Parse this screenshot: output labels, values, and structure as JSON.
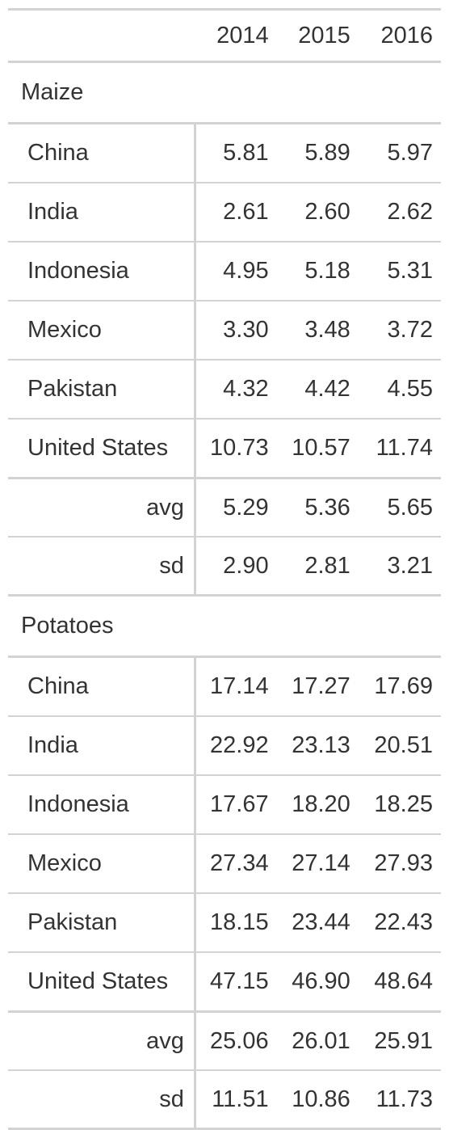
{
  "columns": [
    "2014",
    "2015",
    "2016"
  ],
  "groups": [
    {
      "name": "Maize",
      "rows": [
        {
          "label": "China",
          "values": [
            "5.81",
            "5.89",
            "5.97"
          ]
        },
        {
          "label": "India",
          "values": [
            "2.61",
            "2.60",
            "2.62"
          ]
        },
        {
          "label": "Indonesia",
          "values": [
            "4.95",
            "5.18",
            "5.31"
          ]
        },
        {
          "label": "Mexico",
          "values": [
            "3.30",
            "3.48",
            "3.72"
          ]
        },
        {
          "label": "Pakistan",
          "values": [
            "4.32",
            "4.42",
            "4.55"
          ]
        },
        {
          "label": "United States",
          "values": [
            "10.73",
            "10.57",
            "11.74"
          ]
        }
      ],
      "summary": [
        {
          "label": "avg",
          "values": [
            "5.29",
            "5.36",
            "5.65"
          ]
        },
        {
          "label": "sd",
          "values": [
            "2.90",
            "2.81",
            "3.21"
          ]
        }
      ]
    },
    {
      "name": "Potatoes",
      "rows": [
        {
          "label": "China",
          "values": [
            "17.14",
            "17.27",
            "17.69"
          ]
        },
        {
          "label": "India",
          "values": [
            "22.92",
            "23.13",
            "20.51"
          ]
        },
        {
          "label": "Indonesia",
          "values": [
            "17.67",
            "18.20",
            "18.25"
          ]
        },
        {
          "label": "Mexico",
          "values": [
            "27.34",
            "27.14",
            "27.93"
          ]
        },
        {
          "label": "Pakistan",
          "values": [
            "18.15",
            "23.44",
            "22.43"
          ]
        },
        {
          "label": "United States",
          "values": [
            "47.15",
            "46.90",
            "48.64"
          ]
        }
      ],
      "summary": [
        {
          "label": "avg",
          "values": [
            "25.06",
            "26.01",
            "25.91"
          ]
        },
        {
          "label": "sd",
          "values": [
            "11.51",
            "10.86",
            "11.73"
          ]
        }
      ]
    }
  ],
  "colors": {
    "text": "#333333",
    "rule": "#d3d3d3",
    "background": "#ffffff"
  }
}
